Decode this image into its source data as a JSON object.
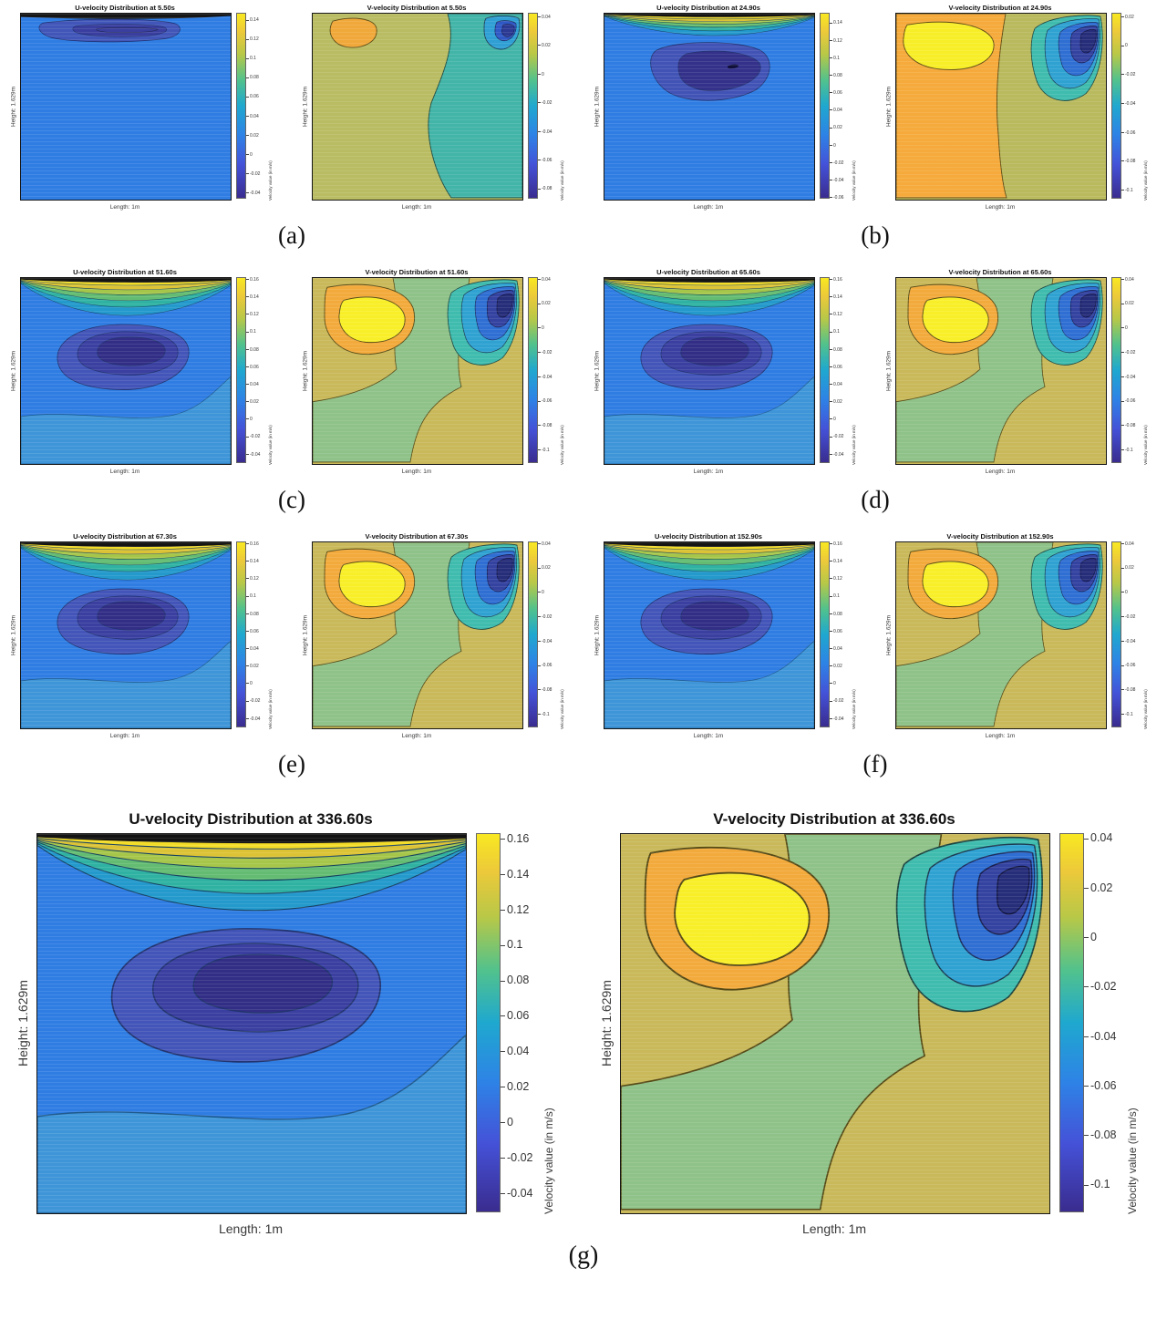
{
  "figure": {
    "panels": [
      {
        "label": "(a)",
        "time": "5.50s"
      },
      {
        "label": "(b)",
        "time": "24.90s"
      },
      {
        "label": "(c)",
        "time": "51.60s"
      },
      {
        "label": "(d)",
        "time": "65.60s"
      },
      {
        "label": "(e)",
        "time": "67.30s"
      },
      {
        "label": "(f)",
        "time": "152.90s"
      },
      {
        "label": "(g)",
        "time": "336.60s"
      }
    ],
    "domain": {
      "length_label": "Length: 1m",
      "height_label": "Height: 1.629m"
    }
  },
  "chart_data": [
    {
      "type": "contour",
      "component": "U",
      "time": "5.50s",
      "title": "U-velocity Distribution at 5.50s",
      "xlabel": "Length: 1m",
      "ylabel": "Height: 1.629m",
      "colorbar_label": "Velocity value (in m/s)",
      "colorbar_ticks": [
        "0.14",
        "0.12",
        "0.1",
        "0.08",
        "0.06",
        "0.04",
        "0.02",
        "0",
        "-0.02",
        "-0.04"
      ],
      "value_range": [
        -0.048,
        0.148
      ],
      "description": "Nearly uniform slightly-negative U field; thin negative-U lens just below the lid; high-shear layer at the very top edge."
    },
    {
      "type": "contour",
      "component": "V",
      "time": "5.50s",
      "title": "V-velocity Distribution at 5.50s",
      "xlabel": "Length: 1m",
      "ylabel": "Height: 1.629m",
      "colorbar_label": "Velocity value (in m/s)",
      "colorbar_ticks": [
        "0.04",
        "0.02",
        "0",
        "-0.02",
        "-0.04",
        "-0.06",
        "-0.08"
      ],
      "value_range": [
        -0.088,
        0.043
      ],
      "description": "Weak updraft pocket (≈0.02) top-left, broad downdraft column on the right, strong downdraft core (≈-0.08) in the top-right corner."
    },
    {
      "type": "contour",
      "component": "U",
      "time": "24.90s",
      "title": "U-velocity Distribution at 24.90s",
      "xlabel": "Length: 1m",
      "ylabel": "Height: 1.629m",
      "colorbar_label": "Velocity value (in m/s)",
      "colorbar_ticks": [
        "0.14",
        "0.12",
        "0.1",
        "0.08",
        "0.06",
        "0.04",
        "0.02",
        "0",
        "-0.02",
        "-0.04",
        "-0.06"
      ],
      "value_range": [
        -0.063,
        0.152
      ],
      "description": "Negative-U return core (≈-0.06) in the upper middle; layered positive-U shear bands (up to ≈0.14) under the lid."
    },
    {
      "type": "contour",
      "component": "V",
      "time": "24.90s",
      "title": "V-velocity Distribution at 24.90s",
      "xlabel": "Length: 1m",
      "ylabel": "Height: 1.629m",
      "colorbar_label": "Velocity value (in m/s)",
      "colorbar_ticks": [
        "0.02",
        "0",
        "-0.02",
        "-0.04",
        "-0.06",
        "-0.08",
        "-0.1"
      ],
      "value_range": [
        -0.107,
        0.023
      ],
      "description": "Large updraft lobe (≈0.02) on the left, downdraft spiral (to ≈-0.1) descending from the top-right corner."
    },
    {
      "type": "contour",
      "component": "U",
      "time": "51.60s",
      "title": "U-velocity Distribution at 51.60s",
      "xlabel": "Length: 1m",
      "ylabel": "Height: 1.629m",
      "colorbar_label": "Velocity value (in m/s)",
      "colorbar_ticks": [
        "0.16",
        "0.14",
        "0.12",
        "0.1",
        "0.08",
        "0.06",
        "0.04",
        "0.02",
        "0",
        "-0.02",
        "-0.04"
      ],
      "value_range": [
        -0.052,
        0.163
      ],
      "description": "Negative-U recirculation core (≈-0.05) upper-middle; thin high-speed lid layer reaching ≈0.16."
    },
    {
      "type": "contour",
      "component": "V",
      "time": "51.60s",
      "title": "V-velocity Distribution at 51.60s",
      "xlabel": "Length: 1m",
      "ylabel": "Height: 1.629m",
      "colorbar_label": "Velocity value (in m/s)",
      "colorbar_ticks": [
        "0.04",
        "0.02",
        "0",
        "-0.02",
        "-0.04",
        "-0.06",
        "-0.08",
        "-0.1"
      ],
      "value_range": [
        -0.112,
        0.042
      ],
      "description": "Strong updraft cell (≈0.04) top-left, downdraft teardrop (to ≈-0.11) at the top-right corner, mild downdraft valley through the centre."
    },
    {
      "type": "contour",
      "component": "U",
      "time": "65.60s",
      "title": "U-velocity Distribution at 65.60s",
      "xlabel": "Length: 1m",
      "ylabel": "Height: 1.629m",
      "colorbar_label": "Velocity value (in m/s)",
      "colorbar_ticks": [
        "0.16",
        "0.14",
        "0.12",
        "0.1",
        "0.08",
        "0.06",
        "0.04",
        "0.02",
        "0",
        "-0.02",
        "-0.04"
      ],
      "value_range": [
        -0.052,
        0.163
      ],
      "description": "Negative-U recirculation core (≈-0.05) upper-middle; thin high-speed lid layer reaching ≈0.16."
    },
    {
      "type": "contour",
      "component": "V",
      "time": "65.60s",
      "title": "V-velocity Distribution at 65.60s",
      "xlabel": "Length: 1m",
      "ylabel": "Height: 1.629m",
      "colorbar_label": "Velocity value (in m/s)",
      "colorbar_ticks": [
        "0.04",
        "0.02",
        "0",
        "-0.02",
        "-0.04",
        "-0.06",
        "-0.08",
        "-0.1"
      ],
      "value_range": [
        -0.112,
        0.042
      ],
      "description": "Updraft cell (≈0.04) top-left and downdraft teardrop (to ≈-0.11) top-right."
    },
    {
      "type": "contour",
      "component": "U",
      "time": "67.30s",
      "title": "U-velocity Distribution at 67.30s",
      "xlabel": "Length: 1m",
      "ylabel": "Height: 1.629m",
      "colorbar_label": "Velocity value (in m/s)",
      "colorbar_ticks": [
        "0.16",
        "0.14",
        "0.12",
        "0.1",
        "0.08",
        "0.06",
        "0.04",
        "0.02",
        "0",
        "-0.02",
        "-0.04"
      ],
      "value_range": [
        -0.052,
        0.163
      ],
      "description": "Negative-U recirculation core (≈-0.05) upper-middle; thin high-speed lid layer reaching ≈0.16."
    },
    {
      "type": "contour",
      "component": "V",
      "time": "67.30s",
      "title": "V-velocity Distribution at 67.30s",
      "xlabel": "Length: 1m",
      "ylabel": "Height: 1.629m",
      "colorbar_label": "Velocity value (in m/s)",
      "colorbar_ticks": [
        "0.04",
        "0.02",
        "0",
        "-0.02",
        "-0.04",
        "-0.06",
        "-0.08",
        "-0.1"
      ],
      "value_range": [
        -0.112,
        0.042
      ],
      "description": "Updraft cell (≈0.04) top-left and downdraft teardrop (to ≈-0.11) top-right."
    },
    {
      "type": "contour",
      "component": "U",
      "time": "152.90s",
      "title": "U-velocity Distribution at 152.90s",
      "xlabel": "Length: 1m",
      "ylabel": "Height: 1.629m",
      "colorbar_label": "Velocity value (in m/s)",
      "colorbar_ticks": [
        "0.16",
        "0.14",
        "0.12",
        "0.1",
        "0.08",
        "0.06",
        "0.04",
        "0.02",
        "0",
        "-0.02",
        "-0.04"
      ],
      "value_range": [
        -0.052,
        0.163
      ],
      "description": "Negative-U recirculation core (≈-0.05) upper-middle; thin high-speed lid layer reaching ≈0.16."
    },
    {
      "type": "contour",
      "component": "V",
      "time": "152.90s",
      "title": "V-velocity Distribution at 152.90s",
      "xlabel": "Length: 1m",
      "ylabel": "Height: 1.629m",
      "colorbar_label": "Velocity value (in m/s)",
      "colorbar_ticks": [
        "0.04",
        "0.02",
        "0",
        "-0.02",
        "-0.04",
        "-0.06",
        "-0.08",
        "-0.1"
      ],
      "value_range": [
        -0.112,
        0.042
      ],
      "description": "Updraft cell (≈0.04) top-left and downdraft teardrop (to ≈-0.11) top-right."
    },
    {
      "type": "contour",
      "component": "U",
      "time": "336.60s",
      "title": "U-velocity Distribution at 336.60s",
      "xlabel": "Length: 1m",
      "ylabel": "Height: 1.629m",
      "colorbar_label": "Velocity value (in m/s)",
      "colorbar_ticks": [
        "0.16",
        "0.14",
        "0.12",
        "0.1",
        "0.08",
        "0.06",
        "0.04",
        "0.02",
        "0",
        "-0.02",
        "-0.04"
      ],
      "value_range": [
        -0.052,
        0.163
      ],
      "description": "Steady-state: negative-U recirculation core (≈-0.05) in the upper middle, lighter-blue weak flow in the lower third, positive shear bands to ≈0.16 at the moving lid."
    },
    {
      "type": "contour",
      "component": "V",
      "time": "336.60s",
      "title": "V-velocity Distribution at 336.60s",
      "xlabel": "Length: 1m",
      "ylabel": "Height: 1.629m",
      "colorbar_label": "Velocity value (in m/s)",
      "colorbar_ticks": [
        "0.04",
        "0.02",
        "0",
        "-0.02",
        "-0.04",
        "-0.06",
        "-0.08",
        "-0.1"
      ],
      "value_range": [
        -0.112,
        0.042
      ],
      "description": "Steady-state: updraft cell (≈0.04) top-left, downdraft teardrop (to ≈-0.11) in the top-right corner, weak downdraft valley through the middle."
    }
  ]
}
